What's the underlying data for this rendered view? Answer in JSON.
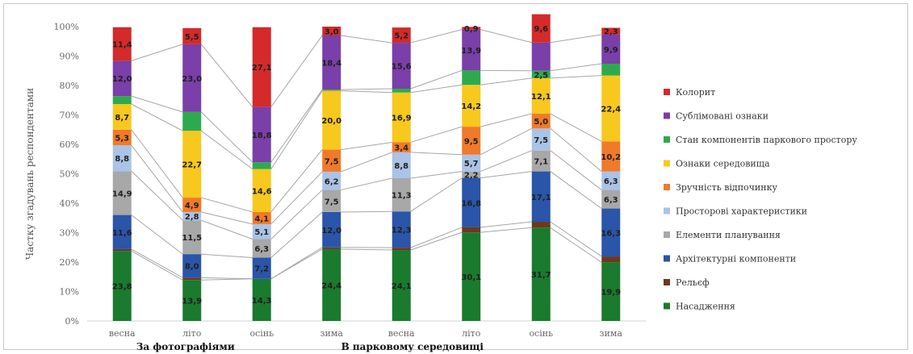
{
  "chart_data": {
    "type": "bar",
    "stacked": true,
    "percent": true,
    "ylabel": "Частку згадувань респондентами",
    "ylim": [
      0,
      100
    ],
    "yticks": [
      "0%",
      "10%",
      "20%",
      "30%",
      "40%",
      "50%",
      "60%",
      "70%",
      "80%",
      "90%",
      "100%"
    ],
    "categories": [
      "весна",
      "літо",
      "осінь",
      "зима",
      "весна",
      "літо",
      "осінь",
      "зима"
    ],
    "groups": [
      {
        "label": "За фотографіями",
        "from": 0,
        "to": 2
      },
      {
        "label": "В парковому середовищі",
        "from": 3,
        "to": 7
      }
    ],
    "legend_position": "right",
    "series": [
      {
        "name": "Насадження",
        "color": "#1a7a2e",
        "values": [
          23.8,
          13.9,
          14.3,
          24.4,
          24.1,
          30.1,
          31.7,
          19.9
        ],
        "labels": [
          "23,8",
          "13,9",
          "14,3",
          "24,4",
          "24,1",
          "30,1",
          "31,7",
          "19,9"
        ]
      },
      {
        "name": "Рельєф",
        "color": "#6b3a1e",
        "values": [
          0.6,
          0.8,
          0.0,
          0.6,
          0.8,
          1.7,
          2.0,
          2.0
        ],
        "labels": [
          "",
          "",
          "",
          "",
          "",
          "",
          "",
          ""
        ]
      },
      {
        "name": "Архітектурні компоненти",
        "color": "#2a55a8",
        "values": [
          11.6,
          8.0,
          7.2,
          12.0,
          12.3,
          16.8,
          17.1,
          16.3
        ],
        "labels": [
          "11,6",
          "8,0",
          "7,2",
          "12,0",
          "12,3",
          "16,8",
          "17,1",
          "16,3"
        ]
      },
      {
        "name": "Елементи планування",
        "color": "#a8a8a8",
        "values": [
          14.9,
          11.5,
          6.3,
          7.5,
          11.3,
          2.2,
          7.1,
          6.3
        ],
        "labels": [
          "14,9",
          "11,5",
          "6,3",
          "7,5",
          "11,3",
          "2,2",
          "7,1",
          "6,3"
        ]
      },
      {
        "name": "Просторові характеристики",
        "color": "#aac3e6",
        "values": [
          8.8,
          2.8,
          5.1,
          6.2,
          8.8,
          5.7,
          7.5,
          6.3
        ],
        "labels": [
          "8,8",
          "2,8",
          "5,1",
          "6,2",
          "8,8",
          "5,7",
          "7,5",
          "6,3"
        ]
      },
      {
        "name": "Зручність відпочинку",
        "color": "#f07a2a",
        "values": [
          5.3,
          4.9,
          4.1,
          7.5,
          3.4,
          9.5,
          5.0,
          10.2
        ],
        "labels": [
          "5,3",
          "4,9",
          "4,1",
          "7,5",
          "3,4",
          "9,5",
          "5,0",
          "10,2"
        ]
      },
      {
        "name": "Ознаки середовища",
        "color": "#f7c81e",
        "values": [
          8.7,
          22.7,
          14.6,
          20.0,
          16.9,
          14.2,
          12.1,
          22.4
        ],
        "labels": [
          "8,7",
          "22,7",
          "14,6",
          "20,0",
          "16,9",
          "14,2",
          "12,1",
          "22,4"
        ]
      },
      {
        "name": "Стан компонентів паркового простору",
        "color": "#2eaa4e",
        "values": [
          2.7,
          6.4,
          2.3,
          0.4,
          1.3,
          4.9,
          2.5,
          4.0
        ],
        "labels": [
          "",
          "",
          "",
          "",
          "",
          "",
          "2,5",
          ""
        ]
      },
      {
        "name": "Сублімовані ознаки",
        "color": "#7a3fa8",
        "values": [
          12.0,
          23.0,
          18.8,
          18.4,
          15.6,
          13.9,
          9.6,
          9.9
        ],
        "labels": [
          "12,0",
          "23,0",
          "18,8",
          "18,4",
          "15,6",
          "13,9",
          "",
          "9,9"
        ]
      },
      {
        "name": "Колорит",
        "color": "#d42a2a",
        "values": [
          11.4,
          5.5,
          27.1,
          3.0,
          5.2,
          0.9,
          9.6,
          2.3
        ],
        "labels": [
          "11,4",
          "5,5",
          "27,1",
          "3,0",
          "5,2",
          "0,9",
          "9,6",
          "2,3"
        ]
      }
    ]
  }
}
